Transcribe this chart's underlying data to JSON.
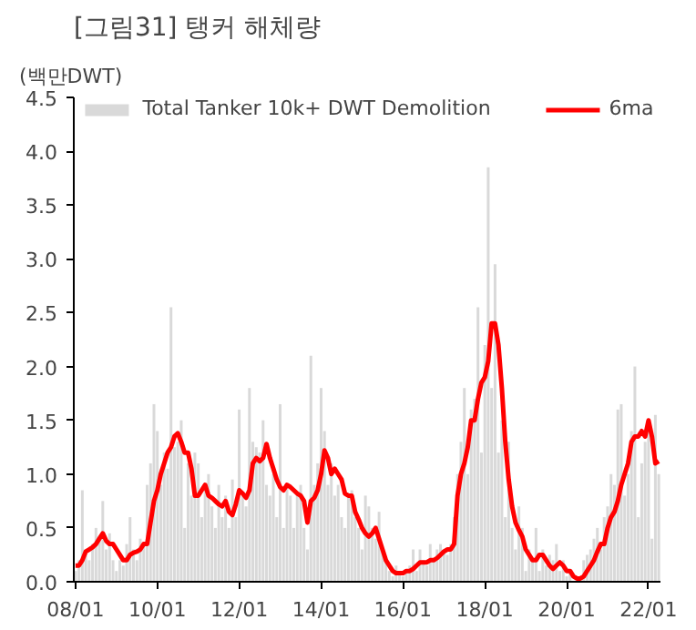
{
  "chart_data": {
    "type": "bar",
    "title": "[그림31] 탱커 해체량",
    "ylabel": "(백만DWT)",
    "categories": [
      "08/01",
      null,
      null,
      null,
      null,
      null,
      null,
      null,
      null,
      null,
      null,
      null,
      null,
      null,
      null,
      null,
      null,
      null,
      null,
      null,
      null,
      null,
      null,
      null,
      "10/01",
      null,
      null,
      null,
      null,
      null,
      null,
      null,
      null,
      null,
      null,
      null,
      null,
      null,
      null,
      null,
      null,
      null,
      null,
      null,
      null,
      null,
      null,
      null,
      "12/01",
      null,
      null,
      null,
      null,
      null,
      null,
      null,
      null,
      null,
      null,
      null,
      null,
      null,
      null,
      null,
      null,
      null,
      null,
      null,
      null,
      null,
      null,
      null,
      "14/01",
      null,
      null,
      null,
      null,
      null,
      null,
      null,
      null,
      null,
      null,
      null,
      null,
      null,
      null,
      null,
      null,
      null,
      null,
      null,
      null,
      null,
      null,
      null,
      "16/01",
      null,
      null,
      null,
      null,
      null,
      null,
      null,
      null,
      null,
      null,
      null,
      null,
      null,
      null,
      null,
      null,
      null,
      null,
      null,
      null,
      null,
      null,
      null,
      "18/01",
      null,
      null,
      null,
      null,
      null,
      null,
      null,
      null,
      null,
      null,
      null,
      null,
      null,
      null,
      null,
      null,
      null,
      null,
      null,
      null,
      null,
      null,
      null,
      "20/01",
      null,
      null,
      null,
      null,
      null,
      null,
      null,
      null,
      null,
      null,
      null,
      null,
      null,
      null,
      null,
      null,
      null,
      null,
      null,
      null,
      null,
      null,
      null,
      "22/01",
      null,
      null,
      null
    ],
    "series": [
      {
        "name": "Total Tanker 10k+ DWT Demolition",
        "color": "#d9d9d9",
        "values": [
          0.1,
          0.2,
          0.85,
          0.3,
          0.2,
          0.35,
          0.5,
          0.4,
          0.75,
          0.3,
          0.45,
          0.2,
          0.1,
          0.2,
          0.15,
          0.35,
          0.6,
          0.3,
          0.2,
          0.4,
          0.35,
          0.9,
          1.1,
          1.65,
          1.4,
          0.9,
          1.2,
          1.05,
          2.55,
          1.25,
          1.3,
          1.5,
          0.5,
          1.1,
          0.8,
          1.2,
          1.1,
          0.6,
          0.9,
          1.0,
          0.7,
          0.5,
          0.9,
          0.6,
          0.8,
          0.5,
          0.95,
          0.6,
          1.6,
          0.8,
          0.7,
          1.8,
          1.3,
          1.25,
          1.2,
          1.5,
          0.9,
          0.8,
          1.0,
          0.6,
          1.65,
          0.5,
          0.9,
          0.8,
          0.5,
          0.8,
          0.9,
          0.5,
          0.3,
          2.1,
          0.9,
          1.1,
          1.8,
          1.4,
          0.9,
          1.1,
          0.8,
          0.9,
          0.6,
          0.5,
          0.8,
          0.85,
          0.6,
          0.5,
          0.3,
          0.8,
          0.7,
          0.5,
          0.4,
          0.65,
          0.3,
          0.2,
          0.1,
          0.05,
          0.15,
          0.1,
          0.05,
          0.1,
          0.15,
          0.3,
          0.1,
          0.3,
          0.2,
          0.15,
          0.35,
          0.2,
          0.3,
          0.35,
          0.3,
          0.25,
          0.35,
          0.6,
          1.0,
          1.3,
          1.8,
          1.0,
          1.6,
          1.7,
          2.55,
          1.2,
          2.2,
          3.85,
          1.8,
          2.95,
          1.2,
          1.5,
          0.6,
          1.3,
          0.5,
          0.3,
          0.7,
          0.5,
          0.1,
          0.3,
          0.2,
          0.5,
          0.1,
          0.3,
          0.15,
          0.25,
          0.2,
          0.35,
          0.1,
          0.2,
          0.05,
          0.1,
          null,
          null,
          null,
          0.2,
          0.25,
          0.3,
          0.4,
          0.5,
          0.3,
          0.6,
          0.7,
          1.0,
          0.9,
          1.6,
          1.65,
          0.8,
          1.0,
          1.4,
          2.0,
          0.6,
          1.1,
          1.3,
          1.4,
          0.4,
          1.55,
          1.0
        ]
      },
      {
        "name": "6ma",
        "type": "line",
        "color": "#ff0000",
        "values": [
          0.15,
          0.15,
          0.2,
          0.28,
          0.3,
          0.32,
          0.35,
          0.4,
          0.45,
          0.38,
          0.35,
          0.35,
          0.3,
          0.25,
          0.2,
          0.2,
          0.25,
          0.27,
          0.28,
          0.3,
          0.35,
          0.35,
          0.55,
          0.75,
          0.85,
          1.0,
          1.1,
          1.2,
          1.25,
          1.35,
          1.38,
          1.3,
          1.2,
          1.2,
          1.05,
          0.8,
          0.8,
          0.85,
          0.9,
          0.8,
          0.78,
          0.75,
          0.72,
          0.7,
          0.75,
          0.65,
          0.62,
          0.72,
          0.85,
          0.82,
          0.78,
          0.85,
          1.1,
          1.15,
          1.12,
          1.15,
          1.28,
          1.15,
          1.05,
          0.95,
          0.88,
          0.85,
          0.9,
          0.88,
          0.85,
          0.82,
          0.8,
          0.75,
          0.55,
          0.75,
          0.78,
          0.85,
          1.0,
          1.22,
          1.15,
          1.0,
          1.05,
          1.0,
          0.95,
          0.82,
          0.8,
          0.8,
          0.65,
          0.58,
          0.5,
          0.45,
          0.42,
          0.45,
          0.5,
          0.4,
          0.3,
          0.2,
          0.15,
          0.1,
          0.08,
          0.08,
          0.08,
          0.1,
          0.1,
          0.12,
          0.15,
          0.18,
          0.18,
          0.18,
          0.2,
          0.2,
          0.22,
          0.25,
          0.28,
          0.3,
          0.3,
          0.35,
          0.8,
          1.0,
          1.1,
          1.25,
          1.5,
          1.5,
          1.7,
          1.85,
          1.9,
          2.05,
          2.4,
          2.4,
          2.2,
          1.8,
          1.3,
          0.95,
          0.7,
          0.55,
          0.48,
          0.42,
          0.3,
          0.25,
          0.2,
          0.2,
          0.25,
          0.25,
          0.2,
          0.15,
          0.12,
          0.15,
          0.18,
          0.15,
          0.1,
          0.1,
          0.05,
          0.03,
          0.03,
          0.05,
          0.1,
          0.15,
          0.2,
          0.28,
          0.35,
          0.35,
          0.5,
          0.6,
          0.65,
          0.75,
          0.9,
          1.0,
          1.1,
          1.3,
          1.35,
          1.35,
          1.4,
          1.35,
          1.5,
          1.35,
          1.1,
          1.12
        ]
      }
    ],
    "ylim": [
      0,
      4.5
    ],
    "yticks": [
      {
        "value": 0,
        "label": "0.0"
      },
      {
        "value": 0.5,
        "label": "0.5"
      },
      {
        "value": 1,
        "label": "1.0"
      },
      {
        "value": 1.5,
        "label": "1.5"
      },
      {
        "value": 2,
        "label": "2.0"
      },
      {
        "value": 2.5,
        "label": "2.5"
      },
      {
        "value": 3,
        "label": "3.0"
      },
      {
        "value": 3.5,
        "label": "3.5"
      },
      {
        "value": 4,
        "label": "4.0"
      },
      {
        "value": 4.5,
        "label": "4.5"
      }
    ],
    "grid": false,
    "legend": "top"
  }
}
